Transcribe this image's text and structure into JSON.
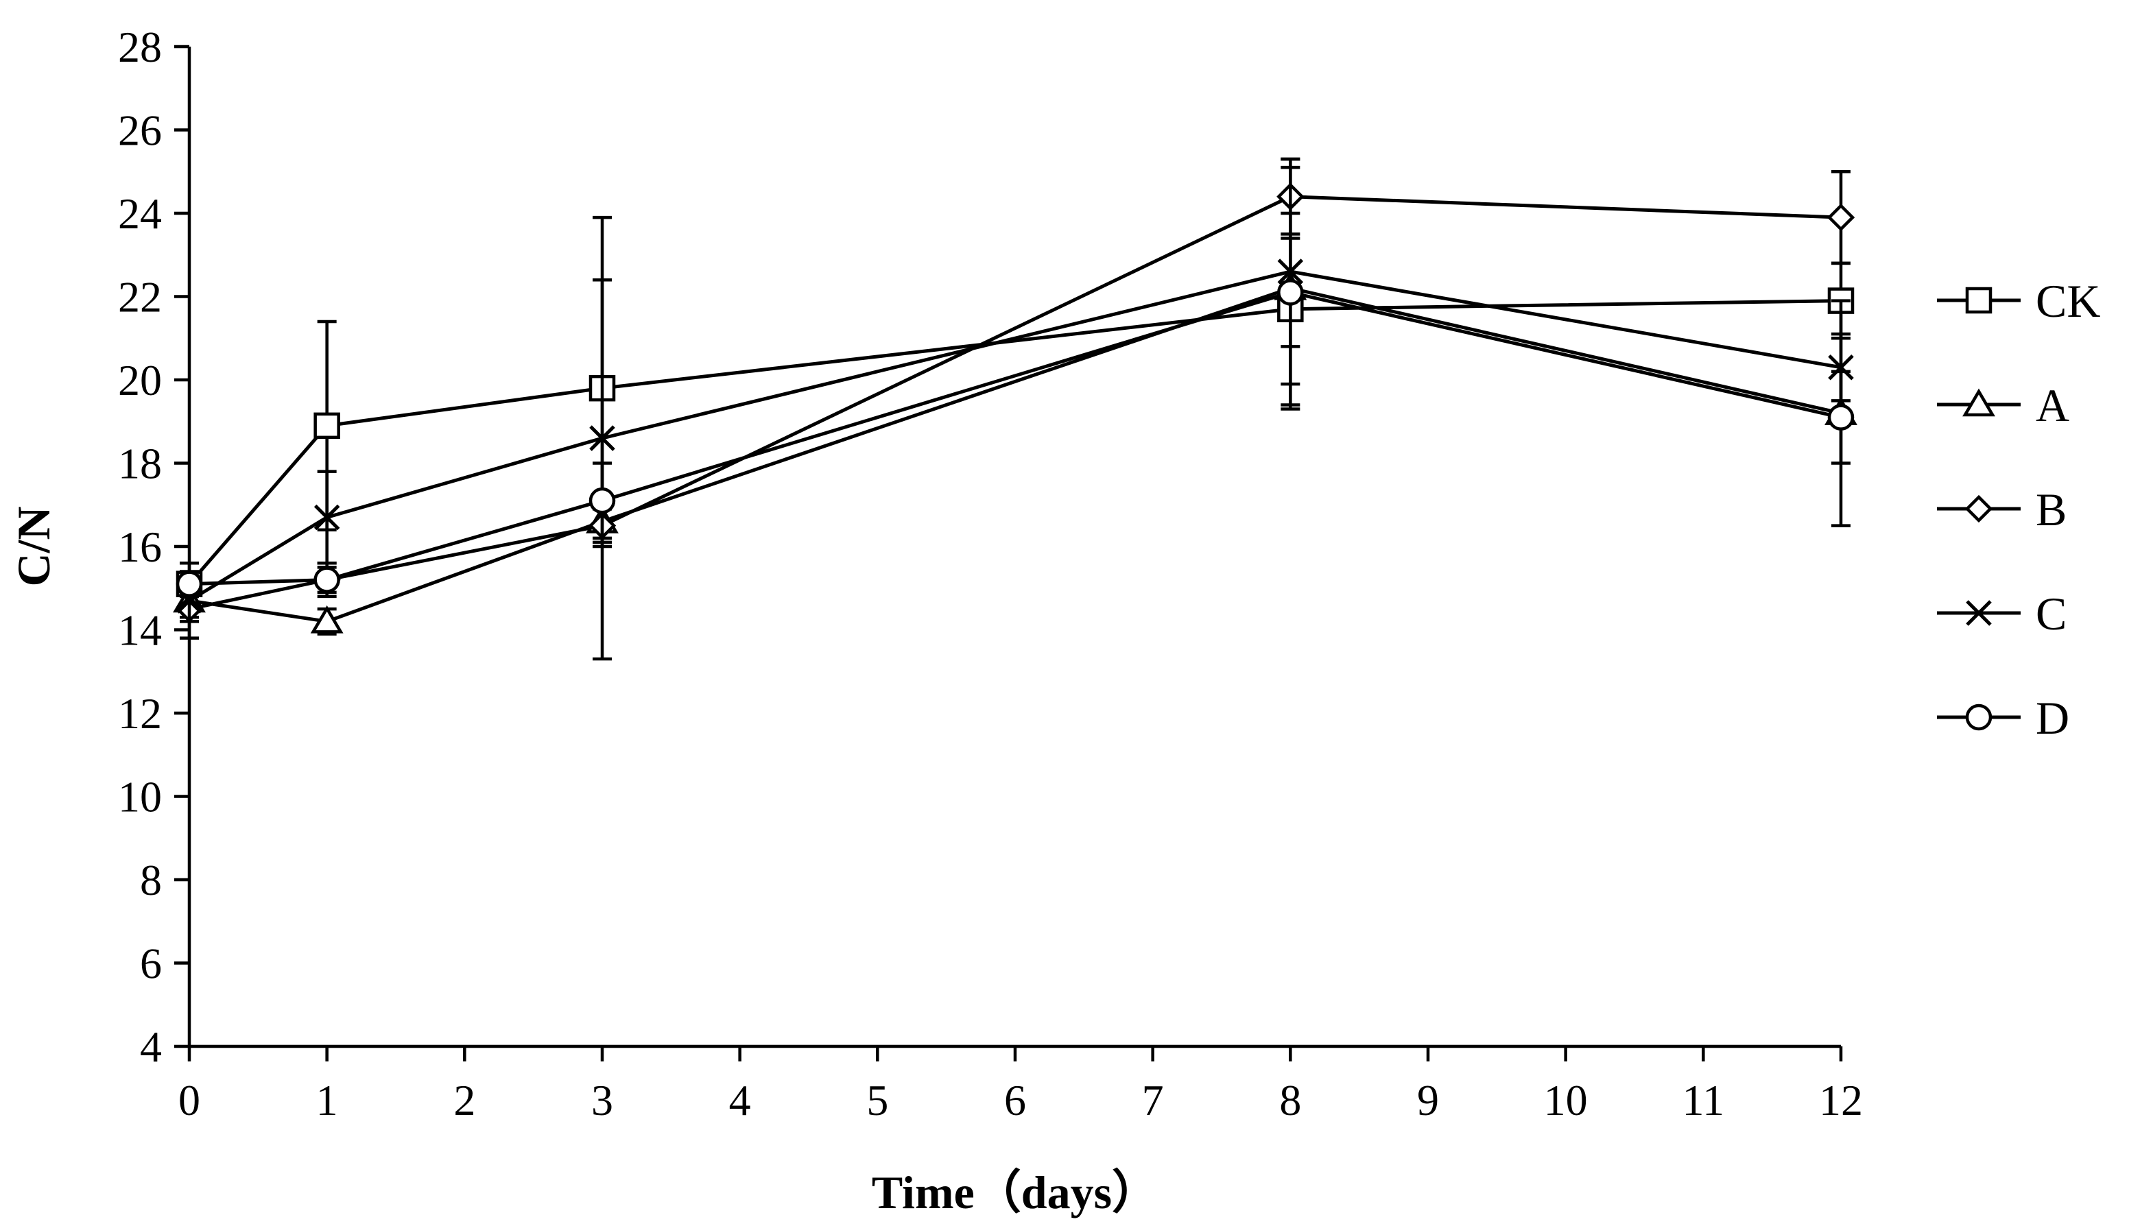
{
  "chart_data": {
    "type": "line",
    "title": "",
    "xlabel": "Time（days）",
    "ylabel": "C/N",
    "xlim": [
      0,
      12
    ],
    "ylim": [
      4,
      28
    ],
    "x_ticks": [
      "0",
      "1",
      "2",
      "3",
      "4",
      "5",
      "6",
      "7",
      "8",
      "9",
      "10",
      "11",
      "12"
    ],
    "y_ticks": [
      "4",
      "6",
      "8",
      "10",
      "12",
      "14",
      "16",
      "18",
      "20",
      "22",
      "24",
      "26",
      "28"
    ],
    "grid": false,
    "legend_position": "right",
    "x": [
      0,
      1,
      3,
      8,
      12
    ],
    "series": [
      {
        "name": "CK",
        "marker": "square",
        "values": [
          15.1,
          18.9,
          19.8,
          21.7,
          21.9
        ],
        "errors": [
          0.3,
          2.5,
          2.6,
          2.3,
          0.9
        ]
      },
      {
        "name": "A",
        "marker": "triangle",
        "values": [
          14.7,
          14.2,
          16.6,
          22.2,
          19.2
        ],
        "errors": [
          0.4,
          0.3,
          0.6,
          2.9,
          2.7
        ]
      },
      {
        "name": "B",
        "marker": "diamond",
        "values": [
          14.5,
          15.2,
          16.5,
          24.4,
          23.9
        ],
        "errors": [
          0.3,
          0.3,
          0.4,
          0.9,
          1.1
        ]
      },
      {
        "name": "C",
        "marker": "x",
        "values": [
          14.7,
          16.7,
          18.6,
          22.6,
          20.3
        ],
        "errors": [
          0.9,
          1.1,
          5.3,
          2.7,
          0.8
        ]
      },
      {
        "name": "D",
        "marker": "circle",
        "values": [
          15.1,
          15.2,
          17.1,
          22.1,
          19.1
        ],
        "errors": [
          0.2,
          0.4,
          0.9,
          1.3,
          1.1
        ]
      }
    ]
  }
}
